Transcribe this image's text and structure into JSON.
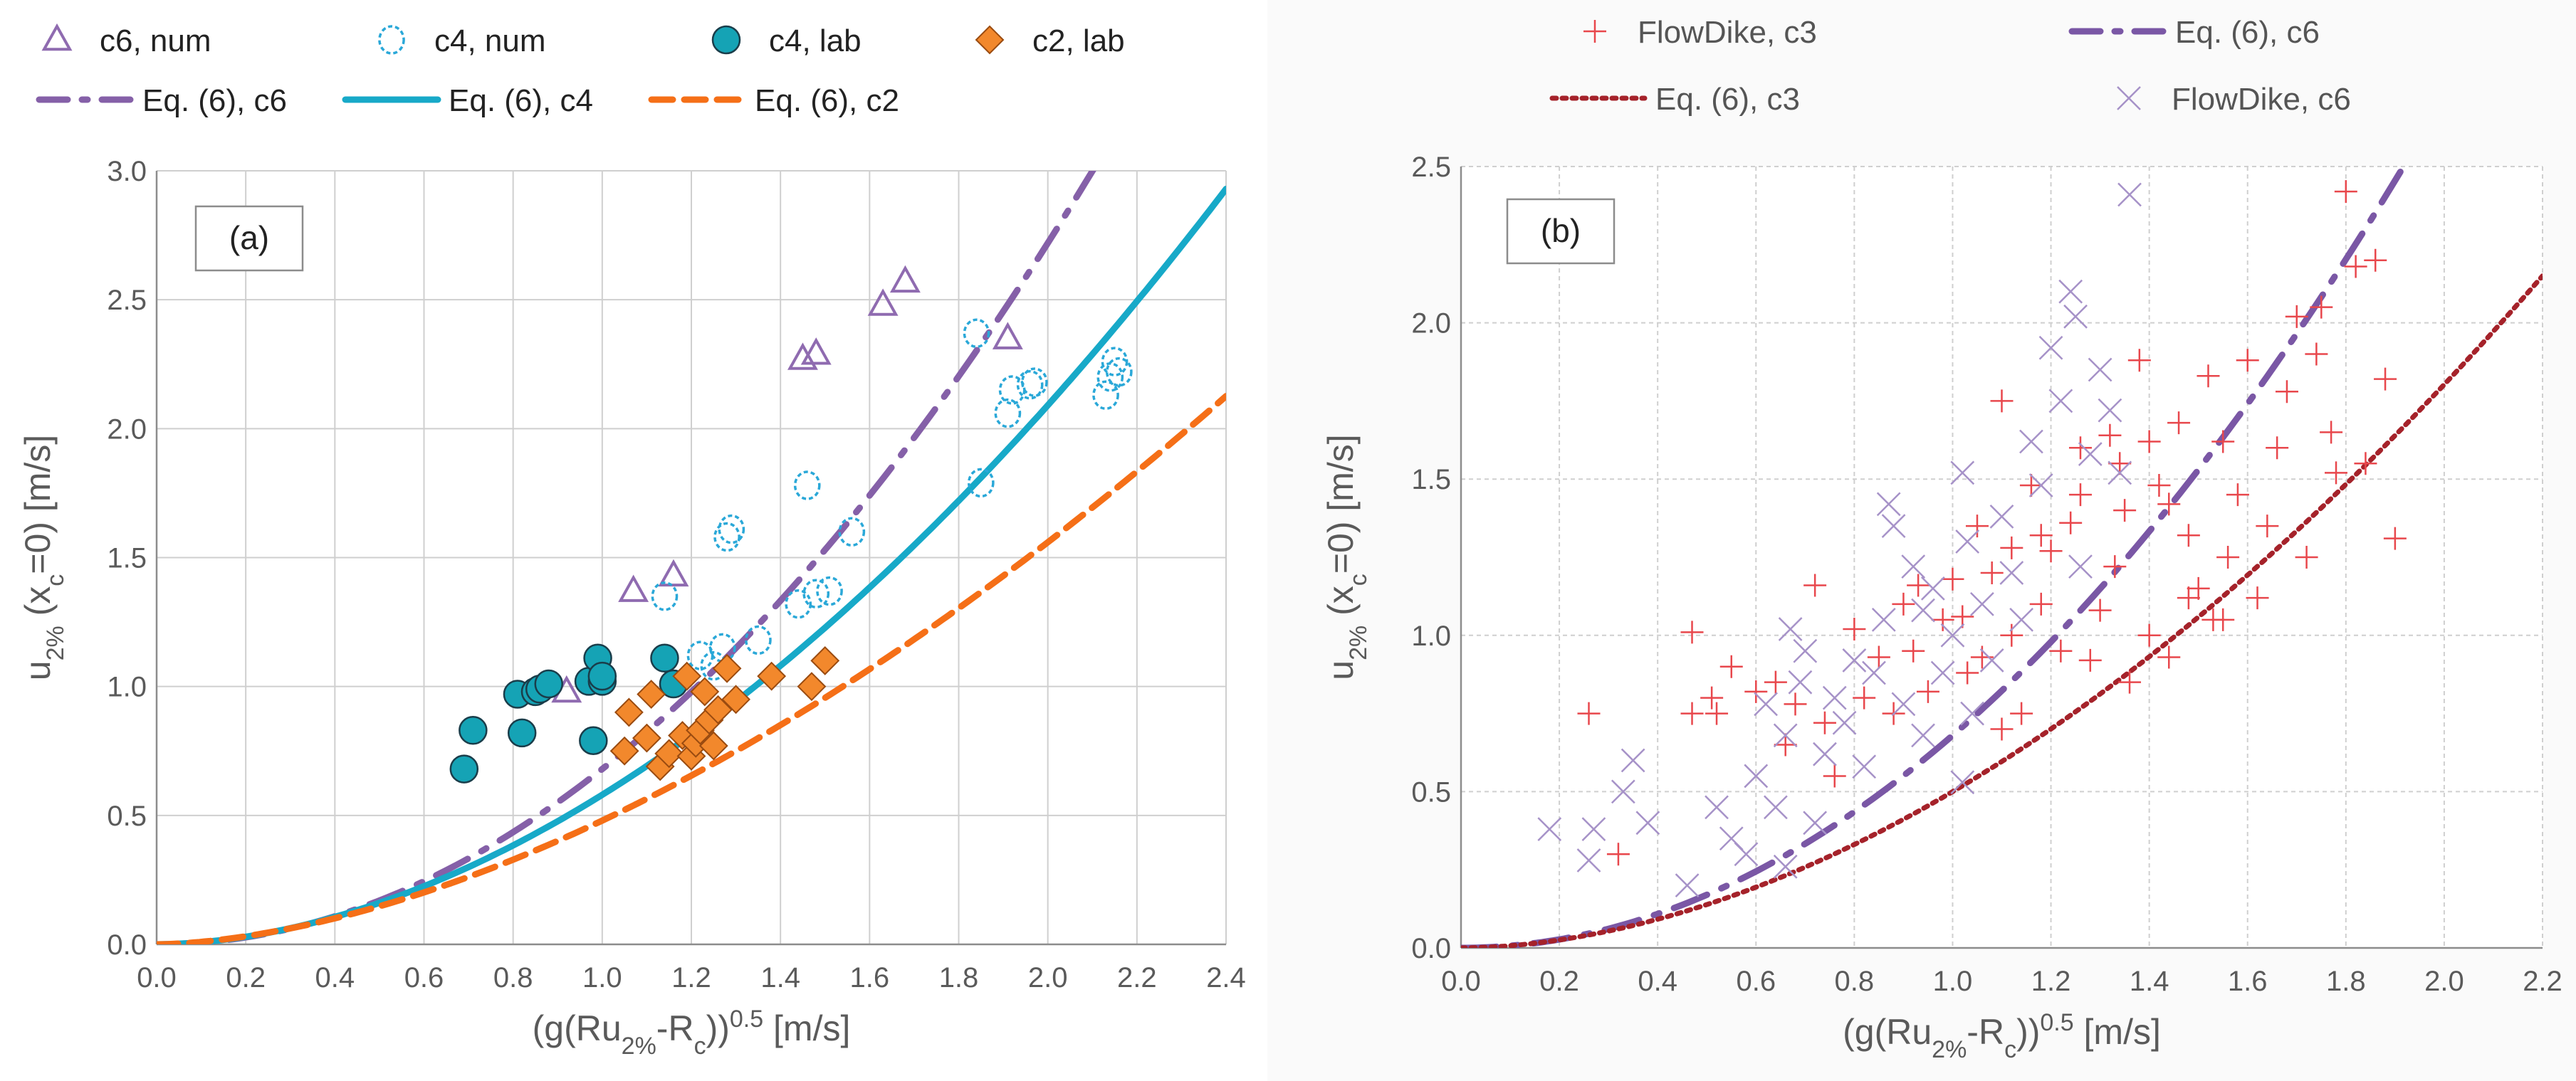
{
  "chart_data": [
    {
      "panel_label": "(a)",
      "type": "scatter",
      "xlabel": "(g(Ru2%-Rc))0.5 [m/s]",
      "ylabel": "u2% (xc=0) [m/s]",
      "xlim": [
        0.0,
        2.4
      ],
      "ylim": [
        0.0,
        3.0
      ],
      "xticks": [
        "0.0",
        "0.2",
        "0.4",
        "0.6",
        "0.8",
        "1.0",
        "1.2",
        "1.4",
        "1.6",
        "1.8",
        "2.0",
        "2.2",
        "2.4"
      ],
      "yticks": [
        "0.0",
        "0.5",
        "1.0",
        "1.5",
        "2.0",
        "2.5",
        "3.0"
      ],
      "grid": true,
      "legend_position": "top",
      "series": [
        {
          "name": "c6, num",
          "kind": "triangle",
          "color": "#8f6bb0",
          "points": [
            [
              0.92,
              0.98
            ],
            [
              1.07,
              1.37
            ],
            [
              1.16,
              1.43
            ],
            [
              1.45,
              2.27
            ],
            [
              1.48,
              2.29
            ],
            [
              1.63,
              2.48
            ],
            [
              1.68,
              2.57
            ],
            [
              1.91,
              2.35
            ]
          ]
        },
        {
          "name": "c4, num",
          "kind": "dashed-circle",
          "color": "#2aa8d8",
          "points": [
            [
              1.14,
              1.35
            ],
            [
              1.22,
              1.12
            ],
            [
              1.25,
              1.08
            ],
            [
              1.27,
              1.15
            ],
            [
              1.28,
              1.58
            ],
            [
              1.29,
              1.61
            ],
            [
              1.35,
              1.18
            ],
            [
              1.44,
              1.32
            ],
            [
              1.46,
              1.78
            ],
            [
              1.48,
              1.36
            ],
            [
              1.51,
              1.37
            ],
            [
              1.56,
              1.6
            ],
            [
              1.84,
              2.37
            ],
            [
              1.85,
              1.79
            ],
            [
              1.91,
              2.06
            ],
            [
              1.92,
              2.15
            ],
            [
              1.96,
              2.17
            ],
            [
              1.97,
              2.18
            ],
            [
              2.13,
              2.13
            ],
            [
              2.14,
              2.2
            ],
            [
              2.16,
              2.22
            ],
            [
              2.15,
              2.26
            ]
          ]
        },
        {
          "name": "c4, lab",
          "kind": "filled-circle",
          "color": "#15a3b5",
          "points": [
            [
              0.69,
              0.68
            ],
            [
              0.71,
              0.83
            ],
            [
              0.81,
              0.97
            ],
            [
              0.82,
              0.82
            ],
            [
              0.85,
              0.98
            ],
            [
              0.86,
              0.99
            ],
            [
              0.88,
              1.01
            ],
            [
              0.97,
              1.02
            ],
            [
              0.98,
              0.79
            ],
            [
              0.99,
              1.11
            ],
            [
              1.0,
              1.02
            ],
            [
              1.0,
              1.04
            ],
            [
              1.14,
              1.11
            ],
            [
              1.16,
              1.01
            ]
          ]
        },
        {
          "name": "c2, lab",
          "kind": "diamond",
          "color": "#f2882c",
          "points": [
            [
              1.05,
              0.75
            ],
            [
              1.06,
              0.9
            ],
            [
              1.1,
              0.8
            ],
            [
              1.11,
              0.97
            ],
            [
              1.13,
              0.69
            ],
            [
              1.15,
              0.74
            ],
            [
              1.18,
              0.81
            ],
            [
              1.19,
              1.04
            ],
            [
              1.2,
              0.73
            ],
            [
              1.21,
              0.78
            ],
            [
              1.22,
              0.83
            ],
            [
              1.23,
              0.98
            ],
            [
              1.24,
              0.87
            ],
            [
              1.25,
              0.77
            ],
            [
              1.26,
              0.91
            ],
            [
              1.28,
              1.07
            ],
            [
              1.3,
              0.95
            ],
            [
              1.38,
              1.04
            ],
            [
              1.47,
              1.0
            ],
            [
              1.5,
              1.1
            ]
          ]
        }
      ],
      "curves": [
        {
          "name": "Eq. (6), c6",
          "style": "dashdot",
          "color": "#8560a8",
          "k": 0.68,
          "exp": 2.0
        },
        {
          "name": "Eq. (6), c4",
          "style": "solid",
          "color": "#17a9c8",
          "k": 0.58,
          "exp": 1.85
        },
        {
          "name": "Eq. (6), c2",
          "style": "dashed",
          "color": "#f56f17",
          "k": 0.48,
          "exp": 1.7
        }
      ]
    },
    {
      "panel_label": "(b)",
      "type": "scatter",
      "xlabel": "(g(Ru2%-Rc))0.5 [m/s]",
      "ylabel": "u2% (xc=0) [m/s]",
      "xlim": [
        0.0,
        2.2
      ],
      "ylim": [
        0.0,
        2.5
      ],
      "xticks": [
        "0.0",
        "0.2",
        "0.4",
        "0.6",
        "0.8",
        "1.0",
        "1.2",
        "1.4",
        "1.6",
        "1.8",
        "2.0",
        "2.2"
      ],
      "yticks": [
        "0.0",
        "0.5",
        "1.0",
        "1.5",
        "2.0",
        "2.5"
      ],
      "grid": true,
      "legend_position": "top",
      "series": [
        {
          "name": "FlowDike, c3",
          "kind": "plus",
          "color": "#e8474c",
          "points": [
            [
              0.26,
              0.75
            ],
            [
              0.32,
              0.3
            ],
            [
              0.47,
              1.01
            ],
            [
              0.47,
              0.75
            ],
            [
              0.51,
              0.8
            ],
            [
              0.52,
              0.75
            ],
            [
              0.55,
              0.9
            ],
            [
              0.6,
              0.82
            ],
            [
              0.64,
              0.85
            ],
            [
              0.66,
              0.65
            ],
            [
              0.68,
              0.78
            ],
            [
              0.72,
              1.16
            ],
            [
              0.74,
              0.72
            ],
            [
              0.76,
              0.55
            ],
            [
              0.8,
              1.02
            ],
            [
              0.82,
              0.8
            ],
            [
              0.85,
              0.93
            ],
            [
              0.88,
              0.75
            ],
            [
              0.9,
              1.1
            ],
            [
              0.92,
              0.95
            ],
            [
              0.93,
              1.16
            ],
            [
              0.95,
              0.82
            ],
            [
              0.98,
              1.05
            ],
            [
              1.0,
              1.18
            ],
            [
              1.02,
              1.06
            ],
            [
              1.03,
              0.88
            ],
            [
              1.05,
              1.35
            ],
            [
              1.06,
              0.93
            ],
            [
              1.08,
              1.2
            ],
            [
              1.1,
              1.75
            ],
            [
              1.12,
              1.0
            ],
            [
              1.14,
              0.75
            ],
            [
              1.16,
              1.48
            ],
            [
              1.18,
              1.1
            ],
            [
              1.2,
              1.27
            ],
            [
              1.22,
              0.95
            ],
            [
              1.24,
              1.36
            ],
            [
              1.26,
              1.6
            ],
            [
              1.28,
              0.92
            ],
            [
              1.3,
              1.08
            ],
            [
              1.32,
              1.64
            ],
            [
              1.33,
              1.22
            ],
            [
              1.35,
              1.4
            ],
            [
              1.36,
              0.85
            ],
            [
              1.38,
              1.88
            ],
            [
              1.4,
              1.0
            ],
            [
              1.42,
              1.48
            ],
            [
              1.44,
              1.42
            ],
            [
              1.46,
              1.68
            ],
            [
              1.48,
              1.32
            ],
            [
              1.5,
              1.15
            ],
            [
              1.52,
              1.83
            ],
            [
              1.53,
              1.05
            ],
            [
              1.55,
              1.62
            ],
            [
              1.56,
              1.25
            ],
            [
              1.58,
              1.45
            ],
            [
              1.6,
              1.88
            ],
            [
              1.62,
              1.12
            ],
            [
              1.64,
              1.35
            ],
            [
              1.66,
              1.6
            ],
            [
              1.68,
              1.78
            ],
            [
              1.7,
              2.02
            ],
            [
              1.72,
              1.25
            ],
            [
              1.74,
              1.9
            ],
            [
              1.75,
              2.05
            ],
            [
              1.77,
              1.65
            ],
            [
              1.78,
              1.52
            ],
            [
              1.8,
              2.42
            ],
            [
              1.82,
              2.18
            ],
            [
              1.84,
              1.55
            ],
            [
              1.86,
              2.2
            ],
            [
              1.88,
              1.82
            ],
            [
              1.9,
              1.31
            ],
            [
              1.55,
              1.05
            ],
            [
              1.48,
              1.12
            ],
            [
              1.44,
              0.93
            ],
            [
              1.26,
              1.45
            ],
            [
              1.18,
              1.32
            ],
            [
              1.12,
              1.28
            ],
            [
              1.1,
              0.7
            ],
            [
              1.34,
              1.55
            ],
            [
              1.4,
              1.62
            ]
          ]
        },
        {
          "name": "FlowDike, c6",
          "kind": "cross",
          "color": "#a692c8",
          "points": [
            [
              0.18,
              0.38
            ],
            [
              0.26,
              0.28
            ],
            [
              0.27,
              0.38
            ],
            [
              0.33,
              0.5
            ],
            [
              0.35,
              0.6
            ],
            [
              0.38,
              0.4
            ],
            [
              0.46,
              0.2
            ],
            [
              0.52,
              0.45
            ],
            [
              0.55,
              0.35
            ],
            [
              0.6,
              0.55
            ],
            [
              0.62,
              0.78
            ],
            [
              0.64,
              0.45
            ],
            [
              0.66,
              0.68
            ],
            [
              0.67,
              1.02
            ],
            [
              0.69,
              0.85
            ],
            [
              0.7,
              0.95
            ],
            [
              0.72,
              0.4
            ],
            [
              0.74,
              0.62
            ],
            [
              0.76,
              0.8
            ],
            [
              0.78,
              0.72
            ],
            [
              0.8,
              0.92
            ],
            [
              0.82,
              0.58
            ],
            [
              0.84,
              0.88
            ],
            [
              0.86,
              1.05
            ],
            [
              0.87,
              1.42
            ],
            [
              0.88,
              1.35
            ],
            [
              0.9,
              0.78
            ],
            [
              0.92,
              1.22
            ],
            [
              0.94,
              0.68
            ],
            [
              0.96,
              1.15
            ],
            [
              0.98,
              0.88
            ],
            [
              1.0,
              1.0
            ],
            [
              1.02,
              1.52
            ],
            [
              1.03,
              1.3
            ],
            [
              1.04,
              0.75
            ],
            [
              1.06,
              1.1
            ],
            [
              1.08,
              0.92
            ],
            [
              1.1,
              1.38
            ],
            [
              1.12,
              1.2
            ],
            [
              1.14,
              1.05
            ],
            [
              1.16,
              1.62
            ],
            [
              1.18,
              1.48
            ],
            [
              1.2,
              1.92
            ],
            [
              1.22,
              1.75
            ],
            [
              1.24,
              2.1
            ],
            [
              1.25,
              2.02
            ],
            [
              1.26,
              1.22
            ],
            [
              1.28,
              1.58
            ],
            [
              1.3,
              1.85
            ],
            [
              1.32,
              1.72
            ],
            [
              1.34,
              1.52
            ],
            [
              1.36,
              2.41
            ],
            [
              1.02,
              0.53
            ],
            [
              0.94,
              1.08
            ],
            [
              0.66,
              0.26
            ],
            [
              0.58,
              0.3
            ]
          ]
        }
      ],
      "curves": [
        {
          "name": "Eq. (6), c6",
          "style": "dashdot",
          "color": "#7a57a5",
          "k": 0.68,
          "exp": 2.0
        },
        {
          "name": "Eq. (6), c3",
          "style": "dotted",
          "color": "#a5222a",
          "k": 0.5,
          "exp": 1.85
        }
      ]
    }
  ],
  "ylabel_parts": {
    "main": "u",
    "sub1": "2%",
    "mid": " (x",
    "sub2": "c",
    "end": "=0) [m/s]"
  },
  "xlabel_parts": {
    "main": "(g(Ru",
    "sub1": "2%",
    "mid": "-R",
    "sub2": "c",
    "mid2": "))",
    "sup": "0.5",
    "end": " [m/s]"
  }
}
